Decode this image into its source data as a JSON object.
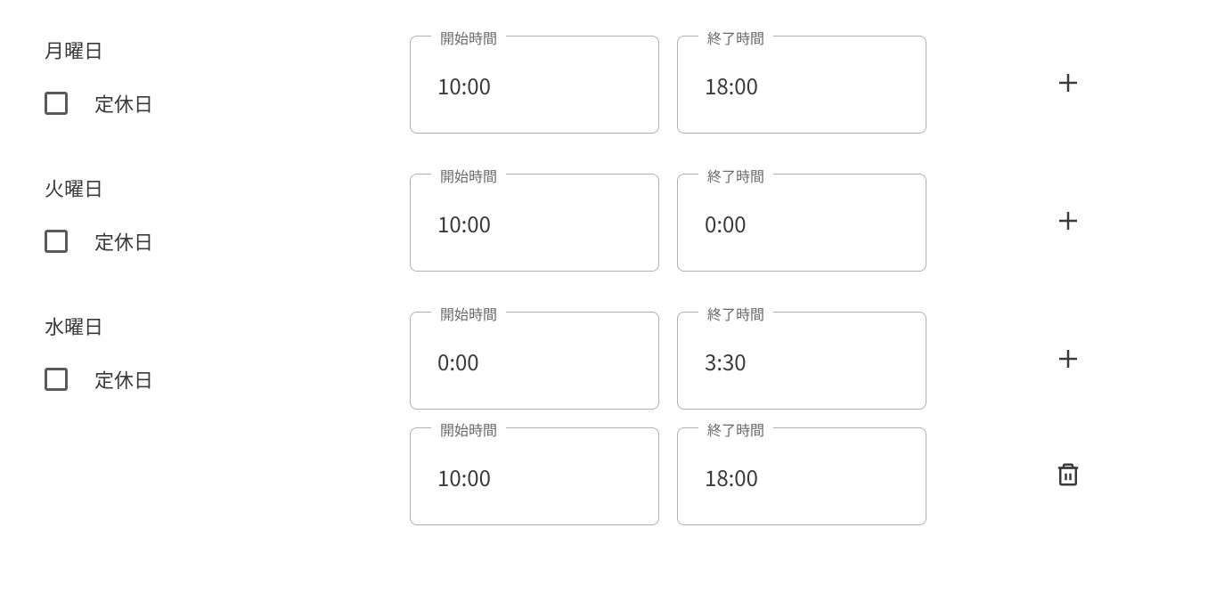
{
  "labels": {
    "start_time": "開始時間",
    "end_time": "終了時間",
    "closed_day": "定休日"
  },
  "days": [
    {
      "name": "月曜日",
      "closed": false,
      "slots": [
        {
          "start": "10:00",
          "end": "18:00",
          "action": "add"
        }
      ]
    },
    {
      "name": "火曜日",
      "closed": false,
      "slots": [
        {
          "start": "10:00",
          "end": "0:00",
          "action": "add"
        }
      ]
    },
    {
      "name": "水曜日",
      "closed": false,
      "slots": [
        {
          "start": "0:00",
          "end": "3:30",
          "action": "add"
        },
        {
          "start": "10:00",
          "end": "18:00",
          "action": "delete"
        }
      ]
    }
  ],
  "colors": {
    "text": "#3a3a3a",
    "label": "#6a6a6a",
    "border": "#b0b0b0",
    "checkbox_border": "#5a5a5a",
    "background": "#ffffff"
  }
}
